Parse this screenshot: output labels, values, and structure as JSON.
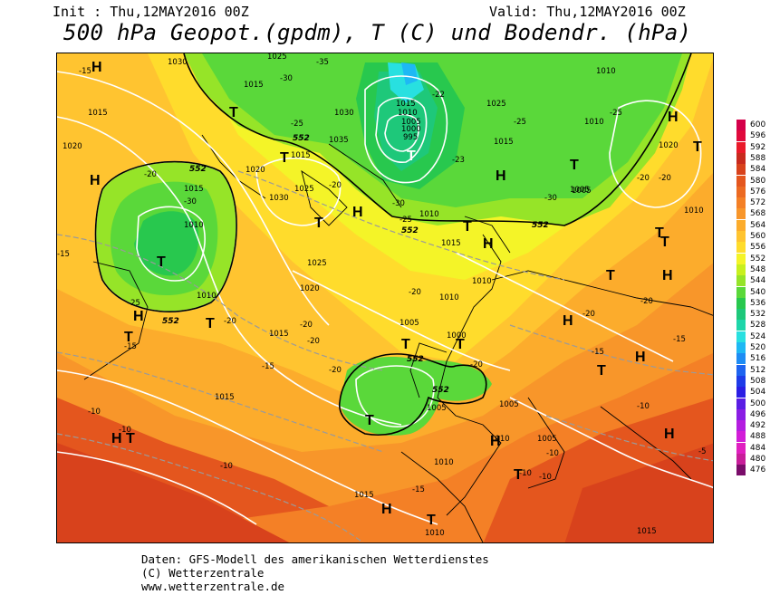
{
  "header": {
    "init": "Init : Thu,12MAY2016 00Z",
    "valid": "Valid: Thu,12MAY2016 00Z",
    "title": "500 hPa Geopot.(gpdm), T (C) und Bodendr. (hPa)"
  },
  "legend": {
    "levels": [
      {
        "label": "600",
        "color": "#d4004a"
      },
      {
        "label": "596",
        "color": "#e00a3c"
      },
      {
        "label": "592",
        "color": "#ea1a2a"
      },
      {
        "label": "588",
        "color": "#c82a1e"
      },
      {
        "label": "584",
        "color": "#d8421c"
      },
      {
        "label": "580",
        "color": "#e4561e"
      },
      {
        "label": "576",
        "color": "#ec6a22"
      },
      {
        "label": "572",
        "color": "#f48026"
      },
      {
        "label": "568",
        "color": "#f8962a"
      },
      {
        "label": "564",
        "color": "#fcac2c"
      },
      {
        "label": "560",
        "color": "#ffc430"
      },
      {
        "label": "556",
        "color": "#ffdc2c"
      },
      {
        "label": "552",
        "color": "#f4f428"
      },
      {
        "label": "548",
        "color": "#c8f01e"
      },
      {
        "label": "544",
        "color": "#96e428"
      },
      {
        "label": "540",
        "color": "#5ad83a"
      },
      {
        "label": "536",
        "color": "#28c84e"
      },
      {
        "label": "532",
        "color": "#1ec87a"
      },
      {
        "label": "528",
        "color": "#1ed6aa"
      },
      {
        "label": "524",
        "color": "#28e0e0"
      },
      {
        "label": "520",
        "color": "#1eb8f4"
      },
      {
        "label": "516",
        "color": "#1e8cf4"
      },
      {
        "label": "512",
        "color": "#1e64f0"
      },
      {
        "label": "508",
        "color": "#1e3ce8"
      },
      {
        "label": "504",
        "color": "#2a1ee4"
      },
      {
        "label": "500",
        "color": "#5a1ee4"
      },
      {
        "label": "496",
        "color": "#8a1ee4"
      },
      {
        "label": "492",
        "color": "#b41ee0"
      },
      {
        "label": "488",
        "color": "#d21ed8"
      },
      {
        "label": "484",
        "color": "#e020c0"
      },
      {
        "label": "480",
        "color": "#c81e9a"
      },
      {
        "label": "476",
        "color": "#7a0c6a"
      }
    ]
  },
  "map": {
    "pressure_labels": [
      "1030",
      "1025",
      "1015",
      "1020",
      "1015",
      "1030",
      "1035",
      "1015",
      "1010",
      "1005",
      "1000",
      "995",
      "1025",
      "1010",
      "1020",
      "1010",
      "1005",
      "1015",
      "1030",
      "1020",
      "1025",
      "1015",
      "1010",
      "1015",
      "1020",
      "1025",
      "1010",
      "1015",
      "1010",
      "1010",
      "1005",
      "1000",
      "1005",
      "1005",
      "1005",
      "1015",
      "1015",
      "1010",
      "1010",
      "1010",
      "1015",
      "1015",
      "1010",
      "1005",
      "1010"
    ],
    "temp_labels": [
      "-15",
      "-35",
      "-30",
      "-25",
      "-22",
      "-25",
      "-30",
      "-25",
      "-23",
      "-30",
      "-20",
      "-25",
      "-20",
      "-30",
      "-15",
      "-25",
      "-20",
      "-20",
      "-20",
      "-20",
      "-15",
      "-20",
      "-15",
      "-15",
      "-20",
      "-20",
      "-10",
      "-10",
      "-10",
      "-10",
      "-15",
      "-10",
      "-10",
      "-5",
      "-20",
      "-20",
      "-10",
      "-15",
      "-20"
    ],
    "geopot_labels": [
      "552",
      "552",
      "552",
      "552",
      "552",
      "552",
      "552"
    ],
    "highs": [
      "H",
      "H",
      "H",
      "H",
      "H",
      "H",
      "H",
      "H",
      "H",
      "H",
      "H",
      "H",
      "H",
      "H"
    ],
    "lows": [
      "T",
      "T",
      "T",
      "T",
      "T",
      "T",
      "T",
      "T",
      "T",
      "T",
      "T",
      "T",
      "T",
      "T",
      "T",
      "T",
      "T",
      "T",
      "T",
      "T"
    ]
  },
  "footer": {
    "line1": "Daten: GFS-Modell des amerikanischen Wetterdienstes",
    "line2": "(C) Wetterzentrale",
    "line3": "www.wetterzentrale.de"
  }
}
